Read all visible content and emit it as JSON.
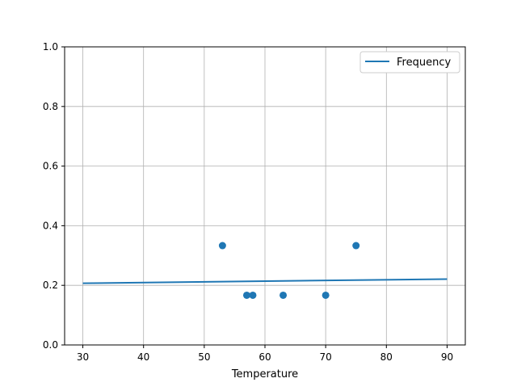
{
  "chart_data": {
    "type": "scatter",
    "title": "",
    "xlabel": "Temperature",
    "ylabel": "",
    "xlim": [
      27,
      93
    ],
    "ylim": [
      0,
      1.0
    ],
    "xticks": [
      "30",
      "40",
      "50",
      "60",
      "70",
      "80",
      "90"
    ],
    "yticks": [
      "0.0",
      "0.2",
      "0.4",
      "0.6",
      "0.8",
      "1.0"
    ],
    "grid": true,
    "legend": {
      "placement": "top-right",
      "entries": [
        "Frequency"
      ]
    },
    "color": "#1f77b4",
    "scatter_points": {
      "x": [
        53,
        57,
        58,
        63,
        70,
        75
      ],
      "y": [
        0.3333,
        0.1667,
        0.1667,
        0.1667,
        0.1667,
        0.3333
      ]
    },
    "line_series": {
      "name": "Frequency",
      "x": [
        30,
        90
      ],
      "y": [
        0.207,
        0.221
      ]
    }
  }
}
